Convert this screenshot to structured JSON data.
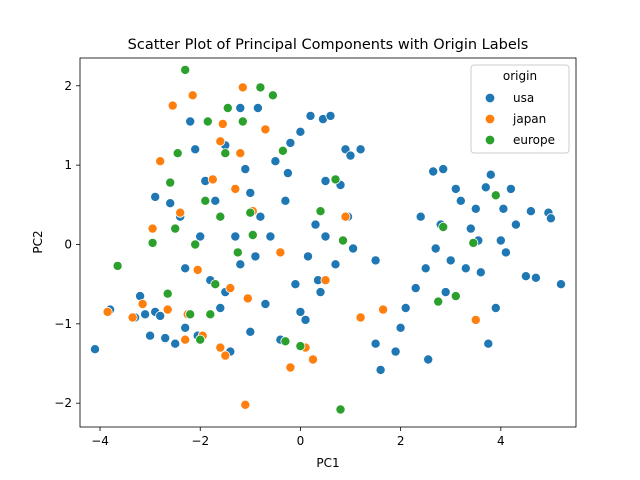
{
  "chart_data": {
    "type": "scatter",
    "title": "Scatter Plot of Principal Components with Origin Labels",
    "xlabel": "PC1",
    "ylabel": "PC2",
    "xlim": [
      -4.4,
      5.5
    ],
    "ylim": [
      -2.3,
      2.35
    ],
    "xticks": [
      -4,
      -2,
      0,
      2,
      4
    ],
    "xtick_labels": [
      "−4",
      "−2",
      "0",
      "2",
      "4"
    ],
    "yticks": [
      -2,
      -1,
      0,
      1,
      2
    ],
    "ytick_labels": [
      "−2",
      "−1",
      "0",
      "1",
      "2"
    ],
    "grid": false,
    "legend": {
      "title": "origin",
      "placement": "top-right"
    },
    "series": [
      {
        "name": "usa",
        "color": "#1f77b4",
        "points": [
          [
            -4.1,
            -1.32
          ],
          [
            -3.8,
            -0.82
          ],
          [
            -3.3,
            -0.92
          ],
          [
            -3.2,
            -0.65
          ],
          [
            -3.1,
            -0.88
          ],
          [
            -3.0,
            -1.15
          ],
          [
            -2.9,
            0.6
          ],
          [
            -2.9,
            -0.85
          ],
          [
            -2.8,
            -0.9
          ],
          [
            -2.7,
            -1.18
          ],
          [
            -2.6,
            0.52
          ],
          [
            -2.5,
            -1.25
          ],
          [
            -2.4,
            0.35
          ],
          [
            -2.3,
            -1.05
          ],
          [
            -2.3,
            -0.3
          ],
          [
            -2.2,
            1.55
          ],
          [
            -2.1,
            1.2
          ],
          [
            -2.05,
            -1.15
          ],
          [
            -2.0,
            0.1
          ],
          [
            -1.9,
            0.8
          ],
          [
            -1.8,
            -0.45
          ],
          [
            -1.7,
            0.55
          ],
          [
            -1.6,
            -0.8
          ],
          [
            -1.5,
            1.25
          ],
          [
            -1.5,
            -0.6
          ],
          [
            -1.4,
            -1.35
          ],
          [
            -1.3,
            0.1
          ],
          [
            -1.2,
            1.72
          ],
          [
            -1.2,
            -0.25
          ],
          [
            -1.1,
            0.95
          ],
          [
            -1.0,
            0.65
          ],
          [
            -0.9,
            -0.15
          ],
          [
            -0.8,
            0.35
          ],
          [
            -0.7,
            -0.75
          ],
          [
            -0.6,
            0.1
          ],
          [
            -0.5,
            1.05
          ],
          [
            -0.4,
            -1.2
          ],
          [
            -0.3,
            0.55
          ],
          [
            -0.2,
            1.28
          ],
          [
            -0.1,
            -0.5
          ],
          [
            0.0,
            -0.85
          ],
          [
            0.0,
            1.42
          ],
          [
            0.1,
            -0.95
          ],
          [
            0.2,
            1.62
          ],
          [
            0.3,
            0.25
          ],
          [
            0.35,
            -0.45
          ],
          [
            0.4,
            -0.6
          ],
          [
            0.45,
            1.58
          ],
          [
            0.5,
            0.1
          ],
          [
            0.6,
            1.62
          ],
          [
            0.7,
            -0.25
          ],
          [
            0.8,
            0.75
          ],
          [
            0.9,
            1.2
          ],
          [
            0.95,
            0.35
          ],
          [
            1.0,
            1.12
          ],
          [
            1.05,
            -0.05
          ],
          [
            1.2,
            1.2
          ],
          [
            1.5,
            -0.2
          ],
          [
            1.5,
            -1.25
          ],
          [
            1.6,
            -1.58
          ],
          [
            1.9,
            -1.35
          ],
          [
            2.0,
            -1.05
          ],
          [
            2.1,
            -0.8
          ],
          [
            2.3,
            -0.55
          ],
          [
            2.4,
            0.35
          ],
          [
            2.5,
            -0.3
          ],
          [
            2.55,
            -1.45
          ],
          [
            2.65,
            0.92
          ],
          [
            2.7,
            -0.05
          ],
          [
            2.8,
            0.25
          ],
          [
            2.85,
            0.95
          ],
          [
            2.9,
            -0.6
          ],
          [
            3.0,
            -0.2
          ],
          [
            3.1,
            0.7
          ],
          [
            3.2,
            0.55
          ],
          [
            3.3,
            -0.3
          ],
          [
            3.4,
            0.2
          ],
          [
            3.5,
            0.45
          ],
          [
            3.55,
            0.05
          ],
          [
            3.6,
            -0.35
          ],
          [
            3.7,
            0.72
          ],
          [
            3.75,
            -1.25
          ],
          [
            3.8,
            0.88
          ],
          [
            3.9,
            -0.8
          ],
          [
            4.0,
            0.05
          ],
          [
            4.05,
            0.45
          ],
          [
            4.1,
            -0.1
          ],
          [
            4.2,
            0.7
          ],
          [
            4.3,
            0.25
          ],
          [
            4.5,
            -0.4
          ],
          [
            4.6,
            0.42
          ],
          [
            4.7,
            -0.42
          ],
          [
            4.95,
            0.4
          ],
          [
            5.0,
            0.33
          ],
          [
            5.2,
            -0.5
          ],
          [
            -0.85,
            1.72
          ],
          [
            -0.25,
            0.9
          ],
          [
            0.15,
            -0.15
          ],
          [
            -1.0,
            -1.1
          ],
          [
            0.5,
            0.8
          ]
        ]
      },
      {
        "name": "japan",
        "color": "#ff7f0e",
        "points": [
          [
            -3.85,
            -0.85
          ],
          [
            -3.35,
            -0.92
          ],
          [
            -3.15,
            -0.75
          ],
          [
            -2.95,
            0.2
          ],
          [
            -2.8,
            1.05
          ],
          [
            -2.65,
            -0.82
          ],
          [
            -2.55,
            1.75
          ],
          [
            -2.4,
            0.4
          ],
          [
            -2.25,
            -0.88
          ],
          [
            -2.15,
            1.88
          ],
          [
            -2.05,
            -0.32
          ],
          [
            -1.95,
            -1.15
          ],
          [
            -1.75,
            0.82
          ],
          [
            -1.6,
            -1.3
          ],
          [
            -1.55,
            1.52
          ],
          [
            -1.4,
            -0.55
          ],
          [
            -1.3,
            0.7
          ],
          [
            -1.15,
            1.98
          ],
          [
            -1.05,
            -0.68
          ],
          [
            -0.95,
            0.42
          ],
          [
            -0.7,
            1.45
          ],
          [
            -0.4,
            -0.1
          ],
          [
            -0.2,
            -1.55
          ],
          [
            0.1,
            -1.3
          ],
          [
            0.25,
            -1.45
          ],
          [
            0.5,
            -0.45
          ],
          [
            0.9,
            0.35
          ],
          [
            1.2,
            -0.92
          ],
          [
            1.65,
            -0.82
          ],
          [
            3.5,
            -0.95
          ],
          [
            -1.1,
            -2.02
          ],
          [
            -1.5,
            -1.4
          ],
          [
            -1.6,
            1.3
          ],
          [
            -2.3,
            -1.2
          ],
          [
            -1.2,
            1.15
          ]
        ]
      },
      {
        "name": "europe",
        "color": "#2ca02c",
        "points": [
          [
            -3.65,
            -0.27
          ],
          [
            -2.95,
            0.02
          ],
          [
            -2.65,
            -0.62
          ],
          [
            -2.5,
            0.2
          ],
          [
            -2.45,
            1.15
          ],
          [
            -2.3,
            2.2
          ],
          [
            -2.2,
            -0.88
          ],
          [
            -2.1,
            0.0
          ],
          [
            -1.9,
            0.55
          ],
          [
            -1.85,
            1.55
          ],
          [
            -1.7,
            -0.5
          ],
          [
            -1.6,
            0.35
          ],
          [
            -1.5,
            1.15
          ],
          [
            -1.45,
            1.72
          ],
          [
            -1.25,
            -0.1
          ],
          [
            -1.15,
            1.55
          ],
          [
            -0.95,
            0.12
          ],
          [
            -0.8,
            1.98
          ],
          [
            -0.55,
            1.88
          ],
          [
            -0.35,
            1.18
          ],
          [
            -0.3,
            -1.22
          ],
          [
            0.0,
            -1.28
          ],
          [
            0.4,
            0.42
          ],
          [
            0.7,
            0.82
          ],
          [
            0.8,
            -2.08
          ],
          [
            0.85,
            0.05
          ],
          [
            2.85,
            0.22
          ],
          [
            3.1,
            -0.65
          ],
          [
            3.45,
            0.02
          ],
          [
            3.9,
            0.62
          ],
          [
            -2.0,
            -1.2
          ],
          [
            -1.0,
            0.4
          ],
          [
            2.75,
            -0.72
          ],
          [
            -2.6,
            0.78
          ],
          [
            -1.8,
            -0.88
          ]
        ]
      }
    ]
  }
}
